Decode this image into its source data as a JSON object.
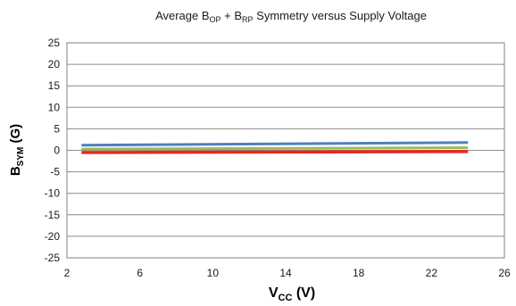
{
  "chart_data": {
    "type": "line",
    "title": {
      "prefix": "Average B",
      "sub1": "OP",
      "mid": " + B",
      "sub2": "RP",
      "suffix": " Symmetry versus Supply Voltage"
    },
    "xlabel": {
      "main": "V",
      "sub": "CC",
      "unit": " (V)"
    },
    "ylabel": {
      "main": "B",
      "sub": "SYM",
      "unit": " (G)"
    },
    "xlim": [
      2,
      26
    ],
    "ylim": [
      -25,
      25
    ],
    "x_ticks": [
      "2",
      "6",
      "10",
      "14",
      "18",
      "22",
      "26"
    ],
    "y_ticks": [
      "25",
      "20",
      "15",
      "10",
      "5",
      "0",
      "-5",
      "-10",
      "-15",
      "-20",
      "-25"
    ],
    "grid": true,
    "legend": "none",
    "x": [
      2.8,
      24
    ],
    "series": [
      {
        "color": "#4f7fc0",
        "values": [
          1.2,
          1.8
        ]
      },
      {
        "color": "#9bbb59",
        "values": [
          0.3,
          0.6
        ]
      },
      {
        "color": "#e8281c",
        "values": [
          -0.5,
          -0.3
        ]
      }
    ]
  }
}
